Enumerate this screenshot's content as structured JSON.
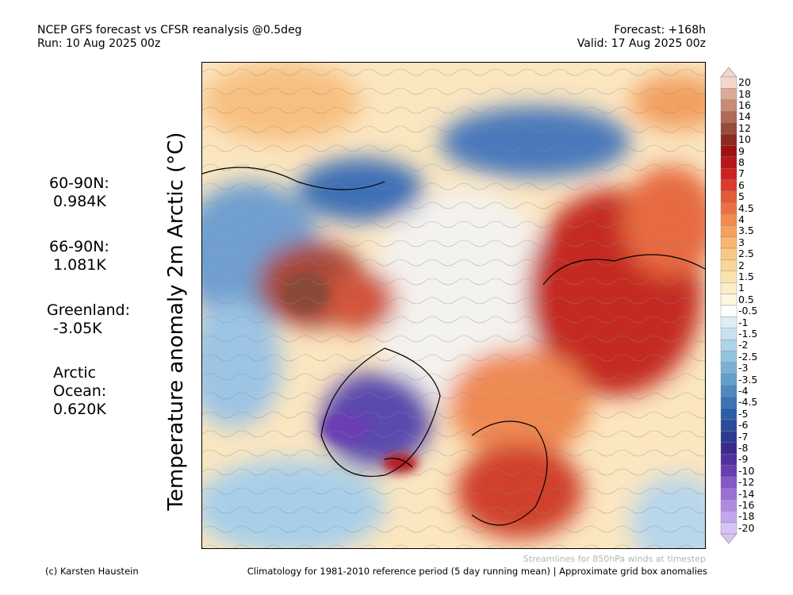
{
  "header": {
    "title": "NCEP GFS forecast vs CFSR reanalysis @0.5deg",
    "run": "Run: 10 Aug 2025 00z",
    "forecast": "Forecast: +168h",
    "valid": "Valid: 17 Aug 2025 00z"
  },
  "axis_label": "Temperature anomaly 2m Arctic (°C)",
  "stats": [
    {
      "label": "60-90N:",
      "value": "0.984K"
    },
    {
      "label": "66-90N:",
      "value": "1.081K"
    },
    {
      "label": "Greenland:",
      "value": "-3.05K"
    },
    {
      "label": "Arctic Ocean:",
      "value": "0.620K",
      "label_lines": [
        "Arctic",
        "Ocean:"
      ]
    }
  ],
  "colorbar": {
    "labels": [
      "20",
      "18",
      "16",
      "14",
      "12",
      "10",
      "9",
      "8",
      "7",
      "6",
      "5",
      "4.5",
      "4",
      "3.5",
      "3",
      "2.5",
      "2",
      "1.5",
      "1",
      "0.5",
      "-0.5",
      "-1",
      "-1.5",
      "-2",
      "-2.5",
      "-3",
      "-3.5",
      "-4",
      "-4.5",
      "-5",
      "-6",
      "-7",
      "-8",
      "-9",
      "-10",
      "-12",
      "-14",
      "-16",
      "-18",
      "-20"
    ],
    "colors": [
      "#f3d6cc",
      "#ddaa97",
      "#c98a76",
      "#b06a58",
      "#9a4a3c",
      "#8a2a20",
      "#a01010",
      "#b8161a",
      "#cc2222",
      "#dd3a2a",
      "#e55a3a",
      "#ee7042",
      "#f38a52",
      "#f6a060",
      "#f8b672",
      "#f9c886",
      "#fad69a",
      "#fbe3b0",
      "#fcedc8",
      "#fdf6e0",
      "#ffffff",
      "#dceef8",
      "#c6e2f2",
      "#aed4ea",
      "#94c3e0",
      "#7bb1d6",
      "#649ecb",
      "#4e89c0",
      "#3a74b4",
      "#2a5fa8",
      "#2a4a9c",
      "#2c3a90",
      "#3a2a8c",
      "#5230a0",
      "#6a3cb4",
      "#8458c6",
      "#9a70d6",
      "#b08ae2",
      "#c4a6ec",
      "#d8c4f4"
    ]
  },
  "footer": {
    "credit": "(c) Karsten Haustein",
    "climatology": "Climatology for 1981-2010 reference period (5 day running mean) | Approximate grid box anomalies",
    "streamlines": "Streamlines for 850hPa winds at timestep"
  }
}
